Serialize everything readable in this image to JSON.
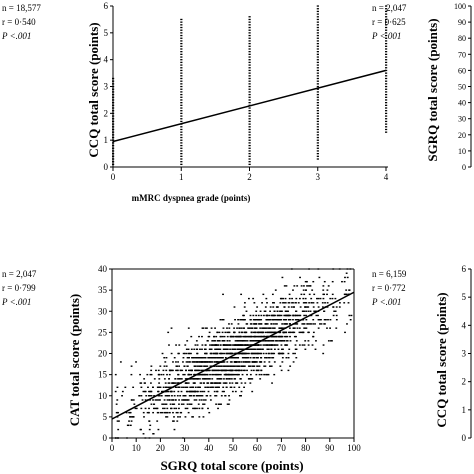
{
  "chart_data": [
    {
      "id": "ccq_vs_mmrc",
      "type": "scatter",
      "xlabel": "mMRC dyspnea grade (points)",
      "ylabel": "CCQ total score (points)",
      "xlim": [
        0,
        4
      ],
      "ylim": [
        0,
        6
      ],
      "xticks": [
        "0",
        "1",
        "2",
        "3",
        "4"
      ],
      "yticks": [
        "0",
        "1",
        "2",
        "3",
        "4",
        "5",
        "6"
      ],
      "stats": {
        "n": "n = 18,577",
        "r": "r = 0·540",
        "p": "P <.001"
      },
      "regression": {
        "x": [
          0,
          4
        ],
        "y": [
          0.95,
          3.6
        ]
      },
      "columns": [
        {
          "x": 0,
          "ymin": 0.1,
          "ymax": 3.3
        },
        {
          "x": 1,
          "ymin": 0.1,
          "ymax": 5.5
        },
        {
          "x": 2,
          "ymin": 0.1,
          "ymax": 5.6
        },
        {
          "x": 3,
          "ymin": 0.3,
          "ymax": 6.0
        },
        {
          "x": 4,
          "ymin": 1.3,
          "ymax": 6.0
        }
      ],
      "grid": false
    },
    {
      "id": "sgrq_partial",
      "type": "scatter",
      "ylabel": "SGRQ total score (points)",
      "ylim": [
        0,
        100
      ],
      "yticks": [
        "0",
        "10",
        "20",
        "30",
        "40",
        "50",
        "60",
        "70",
        "80",
        "90",
        "100"
      ],
      "stats": {
        "n": "n = 2,047",
        "r": "r = 0·625",
        "p": "P <.001"
      },
      "grid": false
    },
    {
      "id": "cat_vs_sgrq",
      "type": "scatter",
      "xlabel": "SGRQ total score (points)",
      "ylabel": "CAT total score (points)",
      "xlim": [
        0,
        100
      ],
      "ylim": [
        0,
        40
      ],
      "xticks": [
        "0",
        "10",
        "20",
        "30",
        "40",
        "50",
        "60",
        "70",
        "80",
        "90",
        "100"
      ],
      "yticks": [
        "0",
        "5",
        "10",
        "15",
        "20",
        "25",
        "30",
        "35",
        "40"
      ],
      "stats": {
        "n": "n = 2,047",
        "r": "r = 0·799",
        "p": "P <.001"
      },
      "regression": {
        "x": [
          0,
          100
        ],
        "y": [
          4.5,
          34.5
        ]
      },
      "grid": false
    },
    {
      "id": "ccq_partial",
      "type": "scatter",
      "ylabel": "CCQ total score (points)",
      "ylim": [
        0,
        6
      ],
      "yticks": [
        "0",
        "1",
        "2",
        "3",
        "4",
        "5",
        "6"
      ],
      "stats": {
        "n": "n = 6,159",
        "r": "r = 0·772",
        "p": "P <.001"
      },
      "grid": false
    }
  ]
}
